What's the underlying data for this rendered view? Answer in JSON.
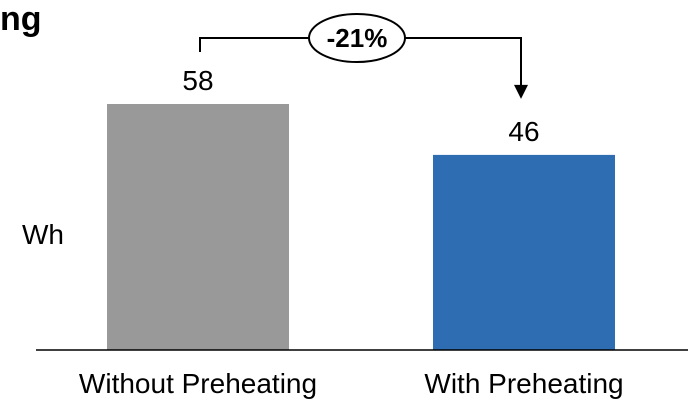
{
  "chart_data": {
    "type": "bar",
    "title_fragment": "ng",
    "ylabel": "Wh",
    "categories": [
      "Without Preheating",
      "With Preheating"
    ],
    "values": [
      58,
      46
    ],
    "colors": [
      "#999999",
      "#2e6db1"
    ],
    "change_label": "-21%",
    "ylim": [
      0,
      70
    ],
    "grid": false,
    "legend": "none"
  }
}
